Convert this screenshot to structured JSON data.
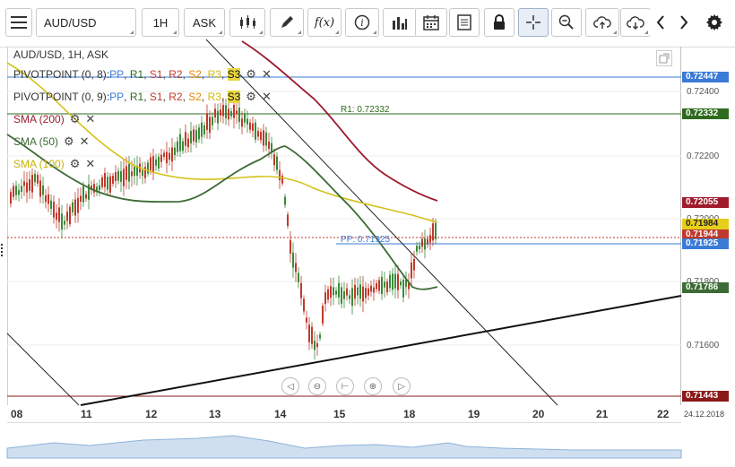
{
  "toolbar": {
    "symbol": "AUD/USD",
    "timeframe": "1H",
    "price_type": "ASK",
    "fx_label": "f(x)"
  },
  "chart": {
    "header": "AUD/USD, 1H, ASK",
    "legend": [
      {
        "id": "pivot1",
        "name": "PIVOTPOINT (0, 8)",
        "sep": " : ",
        "levels": [
          "PP",
          "R1",
          "S1",
          "R2",
          "S2",
          "R3",
          "S3"
        ]
      },
      {
        "id": "pivot2",
        "name": "PIVOTPOINT (0, 9)",
        "sep": " : ",
        "levels": [
          "PP",
          "R1",
          "S1",
          "R2",
          "S2",
          "R3",
          "S3"
        ]
      },
      {
        "id": "sma200",
        "name": "SMA (200)"
      },
      {
        "id": "sma50",
        "name": "SMA (50)"
      },
      {
        "id": "sma100",
        "name": "SMA (100)"
      }
    ],
    "line_labels": {
      "r1": "R1: 0.72332",
      "pp": "PP: 0.71925"
    },
    "price_axis": [
      "0.72400",
      "0.72200",
      "0.72000",
      "0.71800",
      "0.71600"
    ],
    "price_tags": [
      {
        "value": "0.72447",
        "color": "#3a7bd5"
      },
      {
        "value": "0.72332",
        "color": "#2e6b1e"
      },
      {
        "value": "0.72055",
        "color": "#a01c2c"
      },
      {
        "value": "0.71984",
        "color": "#d4b800"
      },
      {
        "value": "0.71944",
        "color": "#c0392b"
      },
      {
        "value": "0.71925",
        "color": "#3a7bd5"
      },
      {
        "value": "0.71786",
        "color": "#3d6b35"
      },
      {
        "value": "0.71443",
        "color": "#8b1a1a"
      }
    ],
    "x_axis": [
      "08",
      "11",
      "12",
      "13",
      "14",
      "15",
      "18",
      "19",
      "20",
      "21",
      "22"
    ],
    "date_label": "24.12.2018"
  },
  "colors": {
    "sma200": "#9b1b2e",
    "sma50": "#3d6b35",
    "sma100": "#d4c21a",
    "pivot": "#3a7bd5",
    "r1": "#2e6b1e",
    "candle_up": "#3a8a3a",
    "candle_down": "#c0392b"
  }
}
